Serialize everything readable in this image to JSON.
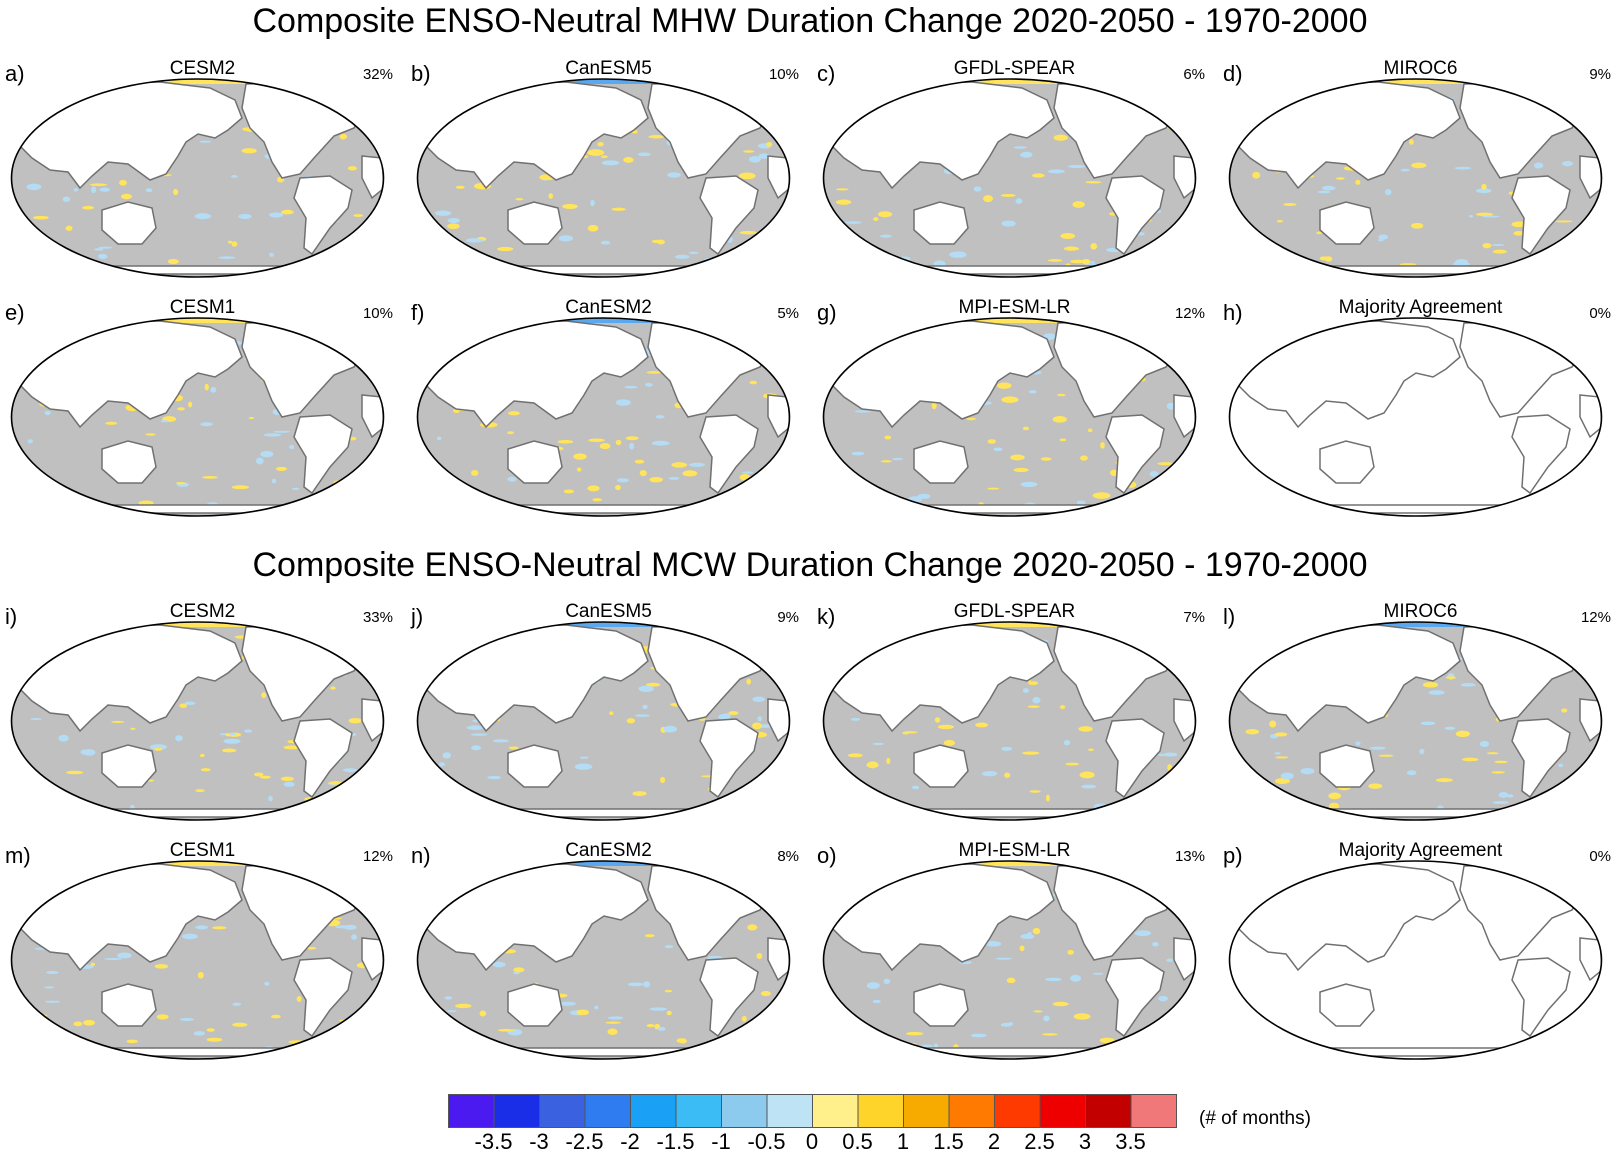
{
  "titles": {
    "mhw": "Composite ENSO-Neutral MHW Duration Change 2020-2050 - 1970-2000",
    "mcw": "Composite ENSO-Neutral MCW Duration Change 2020-2050 - 1970-2000"
  },
  "panels": [
    {
      "letter": "a)",
      "model": "CESM2",
      "pct": "32%",
      "style": "model"
    },
    {
      "letter": "b)",
      "model": "CanESM5",
      "pct": "10%",
      "style": "model"
    },
    {
      "letter": "c)",
      "model": "GFDL-SPEAR",
      "pct": "6%",
      "style": "model"
    },
    {
      "letter": "d)",
      "model": "MIROC6",
      "pct": "9%",
      "style": "model"
    },
    {
      "letter": "e)",
      "model": "CESM1",
      "pct": "10%",
      "style": "model"
    },
    {
      "letter": "f)",
      "model": "CanESM2",
      "pct": "5%",
      "style": "model"
    },
    {
      "letter": "g)",
      "model": "MPI-ESM-LR",
      "pct": "12%",
      "style": "model"
    },
    {
      "letter": "h)",
      "model": "Majority Agreement",
      "pct": "0%",
      "style": "agreement"
    },
    {
      "letter": "i)",
      "model": "CESM2",
      "pct": "33%",
      "style": "model"
    },
    {
      "letter": "j)",
      "model": "CanESM5",
      "pct": "9%",
      "style": "model"
    },
    {
      "letter": "k)",
      "model": "GFDL-SPEAR",
      "pct": "7%",
      "style": "model"
    },
    {
      "letter": "l)",
      "model": "MIROC6",
      "pct": "12%",
      "style": "model"
    },
    {
      "letter": "m)",
      "model": "CESM1",
      "pct": "12%",
      "style": "model"
    },
    {
      "letter": "n)",
      "model": "CanESM2",
      "pct": "8%",
      "style": "model"
    },
    {
      "letter": "o)",
      "model": "MPI-ESM-LR",
      "pct": "13%",
      "style": "model"
    },
    {
      "letter": "p)",
      "model": "Majority Agreement",
      "pct": "0%",
      "style": "agreement"
    }
  ],
  "colorbar": {
    "units": "(# of months)",
    "labels": [
      "-3.5",
      "-3",
      "-2.5",
      "-2",
      "-1.5",
      "-1",
      "-0.5",
      "0",
      "0.5",
      "1",
      "1.5",
      "2",
      "2.5",
      "3",
      "3.5"
    ],
    "colors": [
      "#4b1af0",
      "#1a2ee8",
      "#3a62e0",
      "#2e7cf0",
      "#1aa0f5",
      "#3cbcf5",
      "#8ccbee",
      "#bde3f5",
      "#fff08c",
      "#ffd42a",
      "#f7aa00",
      "#ff7a00",
      "#ff3a00",
      "#ee0000",
      "#c20000",
      "#f07878"
    ]
  },
  "map_colors": {
    "ocean": "#c0c0c0",
    "land": "#ffffff",
    "coast": "#707070",
    "warm": "#ffe45c",
    "cool": "#b4dcf5"
  }
}
